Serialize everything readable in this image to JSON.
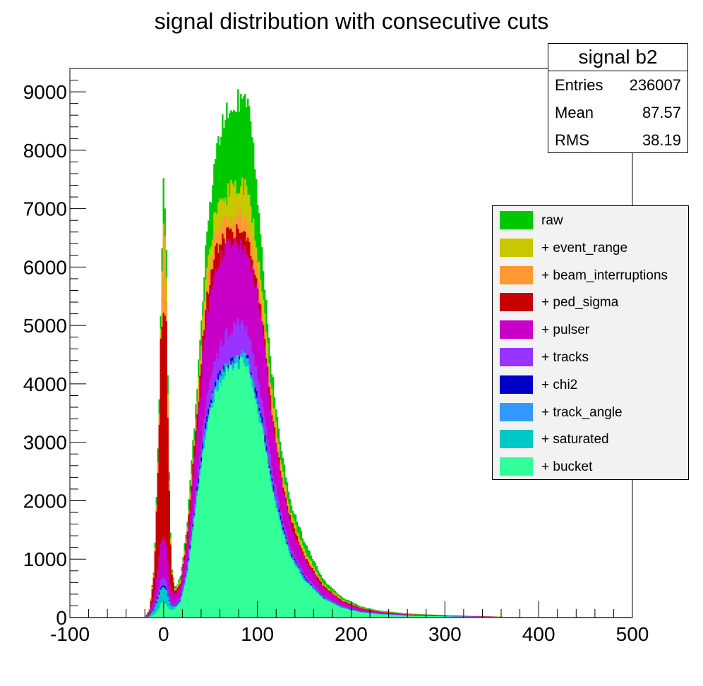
{
  "chart_data": {
    "type": "bar",
    "title": "signal distribution with consecutive cuts",
    "xlim": [
      -100,
      500
    ],
    "ylim": [
      0,
      9400
    ],
    "x_ticks": [
      "-100",
      "0",
      "100",
      "200",
      "300",
      "400",
      "500"
    ],
    "y_ticks": [
      "0",
      "1000",
      "2000",
      "3000",
      "4000",
      "5000",
      "6000",
      "7000",
      "8000",
      "9000"
    ],
    "stats": {
      "title": "signal b2",
      "rows": [
        {
          "label": "Entries",
          "value": "236007"
        },
        {
          "label": "Mean",
          "value": "87.57"
        },
        {
          "label": "RMS",
          "value": "38.19"
        }
      ]
    },
    "x": [
      -100,
      -20,
      -15,
      -10,
      -5,
      -3,
      0,
      3,
      5,
      8,
      12,
      18,
      25,
      35,
      45,
      55,
      65,
      75,
      85,
      90,
      95,
      105,
      115,
      125,
      135,
      150,
      170,
      190,
      210,
      230,
      260,
      300,
      350,
      385,
      500
    ],
    "series": [
      {
        "name": "raw",
        "color": "#00c800",
        "values": [
          0,
          0,
          150,
          900,
          3500,
          5500,
          7700,
          6000,
          3000,
          900,
          500,
          700,
          1600,
          3800,
          6300,
          7900,
          8600,
          8800,
          8900,
          8700,
          8200,
          6300,
          4300,
          2900,
          2000,
          1300,
          650,
          350,
          190,
          120,
          70,
          40,
          20,
          0,
          0
        ]
      },
      {
        "name": "+ event_range",
        "color": "#c8c800",
        "values": [
          0,
          0,
          140,
          850,
          3300,
          5200,
          7000,
          5600,
          2800,
          850,
          470,
          650,
          1500,
          3500,
          5800,
          6900,
          7200,
          7400,
          7400,
          7200,
          6800,
          5600,
          3900,
          2650,
          1800,
          1150,
          580,
          310,
          170,
          110,
          60,
          35,
          18,
          0,
          0
        ]
      },
      {
        "name": "+ beam_interruptions",
        "color": "#ff9933",
        "values": [
          0,
          0,
          130,
          820,
          3200,
          5000,
          6700,
          5400,
          2700,
          820,
          450,
          620,
          1450,
          3400,
          5600,
          6600,
          6800,
          6900,
          6900,
          6700,
          6400,
          5300,
          3700,
          2550,
          1750,
          1100,
          560,
          300,
          165,
          105,
          58,
          34,
          17,
          0,
          0
        ]
      },
      {
        "name": "+ ped_sigma",
        "color": "#c80000",
        "values": [
          0,
          0,
          120,
          800,
          3100,
          4900,
          5300,
          5000,
          2600,
          800,
          440,
          600,
          1400,
          3300,
          5400,
          6300,
          6500,
          6600,
          6600,
          6400,
          6100,
          5100,
          3550,
          2450,
          1700,
          1050,
          540,
          290,
          160,
          100,
          55,
          33,
          16,
          0,
          0
        ]
      },
      {
        "name": "+ pulser",
        "color": "#c800c8",
        "values": [
          0,
          0,
          80,
          400,
          1000,
          1300,
          1400,
          1200,
          800,
          450,
          380,
          550,
          1300,
          3100,
          5100,
          6000,
          6300,
          6400,
          6400,
          6200,
          5900,
          5000,
          3450,
          2350,
          1600,
          1000,
          510,
          270,
          150,
          95,
          52,
          31,
          15,
          0,
          0
        ]
      },
      {
        "name": "+ tracks",
        "color": "#9933ff",
        "values": [
          0,
          0,
          40,
          200,
          500,
          650,
          700,
          600,
          400,
          260,
          240,
          350,
          900,
          2300,
          3700,
          4400,
          4800,
          5000,
          5100,
          4900,
          4500,
          3700,
          2600,
          1800,
          1200,
          750,
          380,
          200,
          110,
          70,
          40,
          24,
          11,
          0,
          0
        ]
      },
      {
        "name": "+ chi2",
        "color": "#0000c8",
        "values": [
          0,
          0,
          30,
          160,
          400,
          520,
          560,
          480,
          320,
          210,
          200,
          300,
          800,
          2100,
          3300,
          4000,
          4300,
          4450,
          4550,
          4400,
          4050,
          3350,
          2350,
          1650,
          1100,
          680,
          345,
          180,
          100,
          64,
          36,
          22,
          10,
          0,
          0
        ]
      },
      {
        "name": "+ track_angle",
        "color": "#3399ff",
        "values": [
          0,
          0,
          28,
          150,
          380,
          500,
          540,
          460,
          310,
          200,
          190,
          290,
          780,
          2050,
          3250,
          3950,
          4250,
          4400,
          4500,
          4350,
          4000,
          3300,
          2300,
          1620,
          1080,
          670,
          340,
          178,
          98,
          63,
          35,
          21,
          10,
          0,
          0
        ]
      },
      {
        "name": "+ saturated",
        "color": "#00c8c8",
        "values": [
          0,
          0,
          26,
          140,
          360,
          480,
          520,
          440,
          300,
          190,
          185,
          285,
          770,
          2030,
          3230,
          3930,
          4230,
          4380,
          4480,
          4330,
          3980,
          3280,
          2280,
          1600,
          1070,
          660,
          335,
          175,
          96,
          62,
          34,
          21,
          9,
          0,
          0
        ]
      },
      {
        "name": "+ bucket",
        "color": "#33ff99",
        "values": [
          0,
          0,
          10,
          50,
          150,
          250,
          260,
          220,
          160,
          130,
          150,
          260,
          730,
          1960,
          3150,
          3850,
          4150,
          4300,
          4400,
          4250,
          3900,
          3200,
          2220,
          1550,
          1030,
          630,
          320,
          165,
          90,
          58,
          32,
          20,
          9,
          0,
          0
        ]
      }
    ]
  }
}
